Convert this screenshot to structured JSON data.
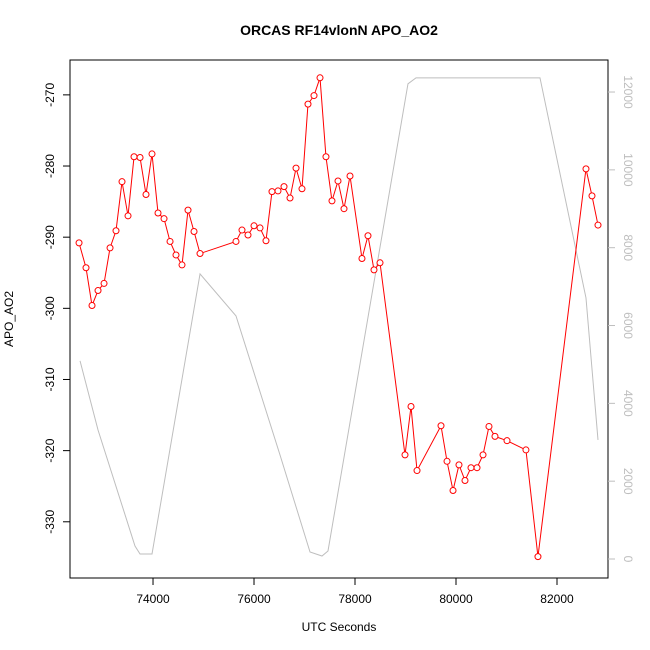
{
  "chart_data": {
    "type": "line",
    "title": "ORCAS RF14vlonN APO_AO2",
    "x_label": "UTC Seconds",
    "y_label": "APO_AO2",
    "xlim": [
      72356,
      83010
    ],
    "ylim": [
      -337.9,
      -265.1
    ],
    "y2lim": [
      -488,
      12823
    ],
    "xticks": [
      74000,
      76000,
      78000,
      80000,
      82000
    ],
    "yticks": [
      -330,
      -320,
      -310,
      -300,
      -290,
      -280,
      -270
    ],
    "y2ticks": [
      0,
      2000,
      4000,
      6000,
      8000,
      10000,
      12000
    ],
    "series": [
      {
        "name": "APO_AO2",
        "color": "#ff0000",
        "markers": true,
        "x": [
          72535,
          72673,
          72792,
          72911,
          73030,
          73149,
          73267,
          73386,
          73505,
          73624,
          73743,
          73861,
          73980,
          74099,
          74218,
          74337,
          74455,
          74574,
          74693,
          74812,
          74931,
          75643,
          75762,
          75881,
          76000,
          76119,
          76237,
          76356,
          76475,
          76594,
          76713,
          76832,
          76950,
          77069,
          77188,
          77307,
          77425,
          77544,
          77663,
          77782,
          77901,
          78138,
          78257,
          78376,
          78495,
          78990,
          79109,
          79228,
          79703,
          79822,
          79941,
          80059,
          80178,
          80297,
          80416,
          80535,
          80653,
          80772,
          81010,
          81385,
          81623,
          82574,
          82693,
          82812
        ],
        "values": [
          -290.8,
          -294.3,
          -299.6,
          -297.5,
          -296.5,
          -291.5,
          -289.1,
          -282.2,
          -287.0,
          -278.7,
          -278.8,
          -284.0,
          -278.3,
          -286.6,
          -287.4,
          -290.6,
          -292.5,
          -293.9,
          -286.2,
          -289.2,
          -292.3,
          -290.6,
          -289.0,
          -289.7,
          -288.4,
          -288.7,
          -290.5,
          -283.6,
          -283.5,
          -282.9,
          -284.5,
          -280.3,
          -283.2,
          -271.3,
          -270.1,
          -267.6,
          -278.7,
          -284.9,
          -282.1,
          -286.0,
          -281.4,
          -293.0,
          -289.8,
          -294.6,
          -293.6,
          -320.6,
          -313.8,
          -322.8,
          -316.5,
          -321.5,
          -325.6,
          -322.0,
          -324.2,
          -322.4,
          -322.4,
          -320.6,
          -316.6,
          -318.0,
          -318.6,
          -319.9,
          -334.9,
          -280.4,
          -284.2,
          -288.3
        ]
      },
      {
        "color": "#bebebe",
        "axis": "y2",
        "markers": false,
        "x": [
          72555,
          72911,
          73643,
          73743,
          73980,
          74931,
          75643,
          76515,
          77109,
          77346,
          77465,
          79049,
          79208,
          81663,
          82574,
          82812
        ],
        "values": [
          5090,
          3316,
          334,
          129,
          129,
          7326,
          6247,
          2673,
          180,
          77,
          206,
          12211,
          12365,
          12365,
          6710,
          3059
        ]
      }
    ]
  }
}
